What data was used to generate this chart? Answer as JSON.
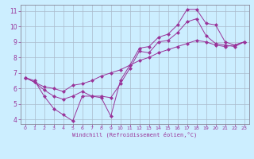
{
  "xlabel": "Windchill (Refroidissement éolien,°C)",
  "background_color": "#cceeff",
  "grid_color": "#aabbcc",
  "line_color": "#993399",
  "xlim": [
    -0.5,
    23.5
  ],
  "ylim": [
    3.7,
    11.4
  ],
  "xticks": [
    0,
    1,
    2,
    3,
    4,
    5,
    6,
    7,
    8,
    9,
    10,
    11,
    12,
    13,
    14,
    15,
    16,
    17,
    18,
    19,
    20,
    21,
    22,
    23
  ],
  "yticks": [
    4,
    5,
    6,
    7,
    8,
    9,
    10,
    11
  ],
  "line1_x": [
    0,
    1,
    2,
    3,
    4,
    5,
    6,
    7,
    8,
    9,
    10,
    11,
    12,
    13,
    14,
    15,
    16,
    17,
    18,
    19,
    20,
    21,
    22,
    23
  ],
  "line1_y": [
    6.7,
    6.5,
    5.5,
    4.7,
    4.3,
    3.9,
    5.5,
    5.5,
    5.4,
    4.2,
    6.5,
    7.5,
    8.6,
    8.7,
    9.3,
    9.5,
    10.1,
    11.1,
    11.1,
    10.2,
    10.1,
    9.0,
    8.8,
    9.0
  ],
  "line2_x": [
    0,
    1,
    2,
    3,
    4,
    5,
    6,
    7,
    8,
    9,
    10,
    11,
    12,
    13,
    14,
    15,
    16,
    17,
    18,
    19,
    20,
    21,
    22,
    23
  ],
  "line2_y": [
    6.7,
    6.4,
    5.9,
    5.5,
    5.3,
    5.5,
    5.8,
    5.5,
    5.5,
    5.4,
    6.3,
    7.3,
    8.4,
    8.3,
    9.0,
    9.1,
    9.6,
    10.3,
    10.5,
    9.4,
    8.9,
    8.8,
    8.7,
    9.0
  ],
  "line3_x": [
    0,
    1,
    2,
    3,
    4,
    5,
    6,
    7,
    8,
    9,
    10,
    11,
    12,
    13,
    14,
    15,
    16,
    17,
    18,
    19,
    20,
    21,
    22,
    23
  ],
  "line3_y": [
    6.7,
    6.4,
    6.1,
    6.0,
    5.8,
    6.2,
    6.3,
    6.5,
    6.8,
    7.0,
    7.2,
    7.5,
    7.8,
    8.0,
    8.3,
    8.5,
    8.7,
    8.9,
    9.1,
    9.0,
    8.8,
    8.7,
    8.8,
    9.0
  ]
}
